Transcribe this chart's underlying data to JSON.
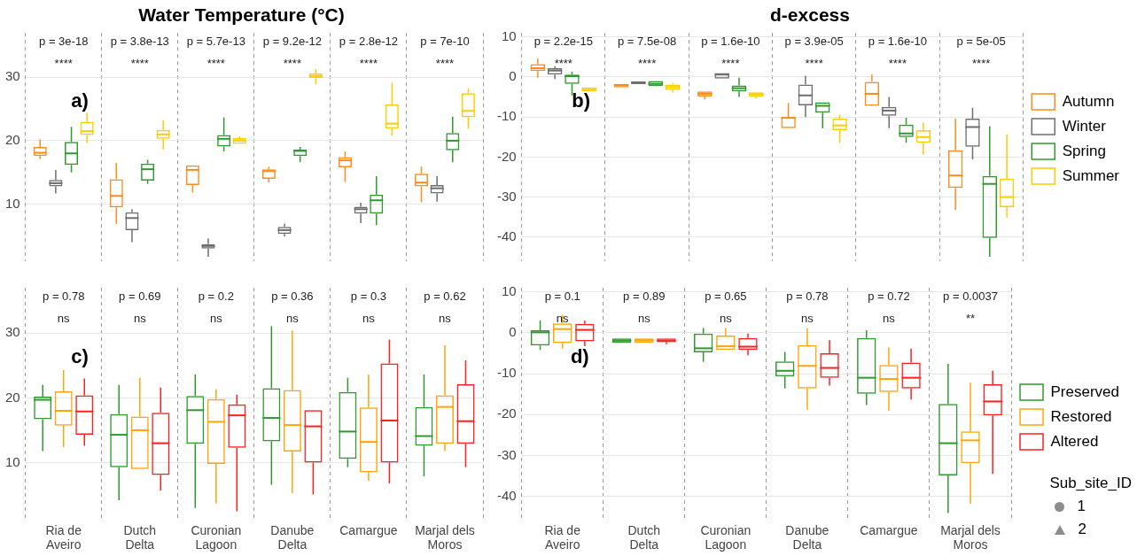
{
  "chart_data": [
    {
      "type": "box",
      "title": "Water Temperature (°C)",
      "categories": [
        null,
        null,
        null,
        null,
        null,
        null
      ],
      "ylim": [
        1,
        37
      ],
      "yticks": [
        10,
        20,
        30
      ],
      "grid": true,
      "tick_labels": "y",
      "legend": false,
      "series": [
        {
          "color": "#ff8c1a",
          "boxes": [
            {
              "low": 17.1,
              "q1": 17.6,
              "median": 18.1,
              "q3": 19.0,
              "high": 20.2
            },
            {
              "low": 6.9,
              "q1": 9.5,
              "median": 11.3,
              "q3": 13.9,
              "high": 16.5
            },
            {
              "low": 11.8,
              "q1": 13.0,
              "median": 15.4,
              "q3": 16.1,
              "high": 16.1
            },
            {
              "low": 13.4,
              "q1": 14.0,
              "median": 15.2,
              "q3": 15.5,
              "high": 15.9
            },
            {
              "low": 13.5,
              "q1": 15.8,
              "median": 16.9,
              "q3": 17.4,
              "high": 18.3
            },
            {
              "low": 10.3,
              "q1": 12.8,
              "median": 13.4,
              "q3": 14.8,
              "high": 15.9
            }
          ]
        },
        {
          "color": "#6e6e6e",
          "boxes": [
            {
              "low": 11.7,
              "q1": 12.8,
              "median": 13.3,
              "q3": 13.8,
              "high": 15.4
            },
            {
              "low": 4.0,
              "q1": 5.9,
              "median": 7.8,
              "q3": 8.7,
              "high": 9.2
            },
            {
              "low": 1.7,
              "q1": 3.0,
              "median": 3.4,
              "q3": 3.7,
              "high": 4.6
            },
            {
              "low": 4.9,
              "q1": 5.3,
              "median": 5.9,
              "q3": 6.4,
              "high": 6.9
            },
            {
              "low": 7.0,
              "q1": 8.5,
              "median": 9.2,
              "q3": 9.6,
              "high": 10.2
            },
            {
              "low": 10.4,
              "q1": 11.7,
              "median": 12.5,
              "q3": 13.0,
              "high": 14.4
            }
          ]
        },
        {
          "color": "#2e9a2e",
          "boxes": [
            {
              "low": 15.0,
              "q1": 16.2,
              "median": 18.0,
              "q3": 19.8,
              "high": 22.2
            },
            {
              "low": 13.2,
              "q1": 13.7,
              "median": 15.5,
              "q3": 16.4,
              "high": 17.0
            },
            {
              "low": 18.3,
              "q1": 19.1,
              "median": 20.3,
              "q3": 20.9,
              "high": 23.7
            },
            {
              "low": 16.6,
              "q1": 17.6,
              "median": 18.4,
              "q3": 18.6,
              "high": 19.0
            },
            {
              "low": 6.7,
              "q1": 8.5,
              "median": 10.6,
              "q3": 11.5,
              "high": 14.4
            },
            {
              "low": 16.6,
              "q1": 18.5,
              "median": 20.0,
              "q3": 21.2,
              "high": 23.8
            }
          ]
        },
        {
          "color": "#ffcc00",
          "boxes": [
            {
              "low": 19.6,
              "q1": 20.9,
              "median": 21.5,
              "q3": 23.0,
              "high": 24.4
            },
            {
              "low": 18.6,
              "q1": 20.3,
              "median": 21.0,
              "q3": 21.7,
              "high": 23.2
            },
            {
              "low": 19.5,
              "q1": 19.5,
              "median": 20.0,
              "q3": 20.4,
              "high": 20.7
            },
            {
              "low": 28.9,
              "q1": 29.9,
              "median": 30.2,
              "q3": 30.6,
              "high": 31.3
            },
            {
              "low": 20.8,
              "q1": 21.9,
              "median": 22.7,
              "q3": 25.7,
              "high": 29.1
            },
            {
              "low": 21.9,
              "q1": 23.7,
              "median": 24.7,
              "q3": 27.5,
              "high": 28.3
            }
          ]
        }
      ],
      "annotations": [
        "a)",
        "p = 3e-18",
        "****",
        "p = 3.8e-13",
        "****",
        "p = 5.7e-13",
        "****",
        "p = 9.2e-12",
        "****",
        "p = 2.8e-12",
        "****",
        "p = 7e-10",
        "****"
      ]
    },
    {
      "type": "box",
      "title": "d-excess",
      "categories": [
        null,
        null,
        null,
        null,
        null,
        null
      ],
      "ylim": [
        -46,
        11
      ],
      "yticks": [
        10,
        0,
        -10,
        -20,
        -30,
        -40
      ],
      "grid": true,
      "tick_labels": "y",
      "legend": "right",
      "series": [
        {
          "name": "Autumn",
          "color": "#ff8c1a",
          "boxes": [
            {
              "low": -0.2,
              "q1": 1.5,
              "median": 2.2,
              "q3": 3.2,
              "high": 4.6
            },
            {
              "low": -2.6,
              "q1": -2.6,
              "median": -2.0,
              "q3": -1.7,
              "high": -1.7
            },
            {
              "low": -5.6,
              "q1": -4.9,
              "median": -4.2,
              "q3": -3.6,
              "high": -3.6
            },
            {
              "low": -12.8,
              "q1": -12.8,
              "median": -10.2,
              "q3": -10.0,
              "high": -6.5
            },
            {
              "low": -7.2,
              "q1": -7.2,
              "median": -4.2,
              "q3": -1.2,
              "high": 0.6
            },
            {
              "low": -33.2,
              "q1": -27.7,
              "median": -24.6,
              "q3": -18.3,
              "high": -10.4
            }
          ]
        },
        {
          "name": "Winter",
          "color": "#6e6e6e",
          "boxes": [
            {
              "low": -0.5,
              "q1": 0.6,
              "median": 1.6,
              "q3": 2.2,
              "high": 2.7
            },
            {
              "low": -1.8,
              "q1": -1.8,
              "median": -1.4,
              "q3": -1.1,
              "high": -1.1
            },
            {
              "low": -0.4,
              "q1": -0.4,
              "median": 0.6,
              "q3": 1.0,
              "high": 1.0
            },
            {
              "low": -10.0,
              "q1": -7.1,
              "median": -4.6,
              "q3": -1.9,
              "high": 0.3
            },
            {
              "low": -12.8,
              "q1": -9.7,
              "median": -8.4,
              "q3": -7.5,
              "high": -5.0
            },
            {
              "low": -20.6,
              "q1": -17.4,
              "median": -12.5,
              "q3": -10.4,
              "high": -7.7
            }
          ]
        },
        {
          "name": "Spring",
          "color": "#2e9a2e",
          "boxes": [
            {
              "low": -4.6,
              "q1": -1.7,
              "median": 0.2,
              "q3": 0.6,
              "high": 1.3
            },
            {
              "low": -2.2,
              "q1": -2.2,
              "median": -1.7,
              "q3": -1.0,
              "high": -1.0
            },
            {
              "low": -5.0,
              "q1": -3.6,
              "median": -2.8,
              "q3": -2.1,
              "high": -0.2
            },
            {
              "low": -12.8,
              "q1": -8.9,
              "median": -7.2,
              "q3": -6.3,
              "high": -6.3
            },
            {
              "low": -16.4,
              "q1": -15.0,
              "median": -14.1,
              "q3": -11.9,
              "high": -10.2
            },
            {
              "low": -44.9,
              "q1": -40.2,
              "median": -26.7,
              "q3": -24.7,
              "high": -12.3
            }
          ]
        },
        {
          "name": "Summer",
          "color": "#ffcc00",
          "boxes": [
            {
              "low": -3.6,
              "q1": -3.6,
              "median": -3.2,
              "q3": -2.6,
              "high": -2.6
            },
            {
              "low": -3.9,
              "q1": -3.2,
              "median": -2.5,
              "q3": -1.9,
              "high": -1.5
            },
            {
              "low": -5.3,
              "q1": -4.9,
              "median": -4.3,
              "q3": -3.8,
              "high": -3.8
            },
            {
              "low": -16.5,
              "q1": -13.3,
              "median": -12.1,
              "q3": -10.4,
              "high": -9.4
            },
            {
              "low": -19.4,
              "q1": -16.4,
              "median": -15.0,
              "q3": -13.3,
              "high": -11.4
            },
            {
              "low": -35.1,
              "q1": -32.5,
              "median": -30.0,
              "q3": -25.4,
              "high": -14.3
            }
          ]
        }
      ],
      "annotations": [
        "b)",
        "p = 2.2e-15",
        "****",
        "p = 7.5e-08",
        "****",
        "p = 1.6e-10",
        "****",
        "p = 3.9e-05",
        "****",
        "p = 1.6e-10",
        "****",
        "p = 5e-05",
        "****"
      ]
    },
    {
      "type": "box",
      "categories": [
        "Ria de Aveiro",
        "Dutch Delta",
        "Curonian Lagoon",
        "Danube Delta",
        "Camargue",
        "Marjal dels Moros"
      ],
      "ylim": [
        1,
        37
      ],
      "yticks": [
        10,
        20,
        30
      ],
      "grid": true,
      "legend": false,
      "series": [
        {
          "color": "#2e9a2e",
          "boxes": [
            {
              "low": 11.8,
              "q1": 16.7,
              "median": 19.7,
              "q3": 20.2,
              "high": 22.0
            },
            {
              "low": 4.2,
              "q1": 9.3,
              "median": 14.3,
              "q3": 17.5,
              "high": 22.0
            },
            {
              "low": 3.0,
              "q1": 12.9,
              "median": 18.1,
              "q3": 20.3,
              "high": 23.6
            },
            {
              "low": 6.6,
              "q1": 13.3,
              "median": 16.9,
              "q3": 21.5,
              "high": 31.1
            },
            {
              "low": 9.3,
              "q1": 10.6,
              "median": 14.8,
              "q3": 20.9,
              "high": 23.1
            },
            {
              "low": 7.9,
              "q1": 12.6,
              "median": 14.1,
              "q3": 18.6,
              "high": 23.6
            }
          ]
        },
        {
          "color": "#ffa50a",
          "boxes": [
            {
              "low": 12.4,
              "q1": 15.7,
              "median": 18.0,
              "q3": 21.0,
              "high": 24.3
            },
            {
              "low": 9.0,
              "q1": 9.0,
              "median": 15.0,
              "q3": 17.1,
              "high": 23.1
            },
            {
              "low": 3.7,
              "q1": 9.8,
              "median": 16.3,
              "q3": 19.8,
              "high": 21.3
            },
            {
              "low": 5.3,
              "q1": 11.7,
              "median": 15.8,
              "q3": 21.2,
              "high": 30.4
            },
            {
              "low": 7.2,
              "q1": 8.5,
              "median": 13.2,
              "q3": 18.5,
              "high": 23.6
            },
            {
              "low": 11.8,
              "q1": 12.9,
              "median": 18.6,
              "q3": 20.4,
              "high": 28.1
            }
          ]
        },
        {
          "color": "#ff1f1f",
          "boxes": [
            {
              "low": 12.6,
              "q1": 14.3,
              "median": 17.9,
              "q3": 20.4,
              "high": 23.0
            },
            {
              "low": 5.7,
              "q1": 8.1,
              "median": 13.0,
              "q3": 17.7,
              "high": 21.6
            },
            {
              "low": 2.5,
              "q1": 12.3,
              "median": 17.3,
              "q3": 19.0,
              "high": 20.5
            },
            {
              "low": 5.1,
              "q1": 10.0,
              "median": 15.6,
              "q3": 18.1,
              "high": 18.1
            },
            {
              "low": 6.8,
              "q1": 10.0,
              "median": 16.5,
              "q3": 25.3,
              "high": 29.0
            },
            {
              "low": 9.3,
              "q1": 12.9,
              "median": 16.4,
              "q3": 22.1,
              "high": 25.8
            }
          ]
        }
      ],
      "annotations": [
        "c)",
        "p = 0.78",
        "ns",
        "p = 0.69",
        "ns",
        "p = 0.2",
        "ns",
        "p = 0.36",
        "ns",
        "p = 0.3",
        "ns",
        "p = 0.62",
        "ns"
      ]
    },
    {
      "type": "box",
      "categories": [
        "Ria de Aveiro",
        "Dutch Delta",
        "Curonian Lagoon",
        "Danube Delta",
        "Camargue",
        "Marjal dels Moros"
      ],
      "ylim": [
        -46,
        11
      ],
      "yticks": [
        10,
        0,
        -10,
        -20,
        -30,
        -40
      ],
      "grid": true,
      "legend": "right",
      "series": [
        {
          "name": "Preserved",
          "color": "#2e9a2e",
          "boxes": [
            {
              "low": -4.2,
              "q1": -3.1,
              "median": 0.1,
              "q3": 0.6,
              "high": 3.0
            },
            {
              "low": -2.4,
              "q1": -2.4,
              "median": -1.9,
              "q3": -1.4,
              "high": -1.4
            },
            {
              "low": -7.1,
              "q1": -4.8,
              "median": -3.8,
              "q3": -0.2,
              "high": 1.2
            },
            {
              "low": -13.6,
              "q1": -10.7,
              "median": -9.3,
              "q3": -7.0,
              "high": -4.7
            },
            {
              "low": -17.7,
              "q1": -14.9,
              "median": -11.0,
              "q3": -1.3,
              "high": 0.6
            },
            {
              "low": -44.1,
              "q1": -34.9,
              "median": -27.0,
              "q3": -17.4,
              "high": -7.6
            }
          ]
        },
        {
          "name": "Restored",
          "color": "#ffa50a",
          "boxes": [
            {
              "low": -3.8,
              "q1": -2.5,
              "median": 0.9,
              "q3": 2.3,
              "high": 4.4
            },
            {
              "low": -2.4,
              "q1": -2.4,
              "median": -1.8,
              "q3": -1.4,
              "high": -1.4
            },
            {
              "low": -4.2,
              "q1": -4.2,
              "median": -3.3,
              "q3": -0.7,
              "high": 1.2
            },
            {
              "low": -18.8,
              "q1": -13.6,
              "median": -8.1,
              "q3": -3.0,
              "high": 1.1
            },
            {
              "low": -19.1,
              "q1": -14.5,
              "median": -11.3,
              "q3": -7.9,
              "high": -3.6
            },
            {
              "low": -41.8,
              "q1": -31.9,
              "median": -26.3,
              "q3": -24.1,
              "high": -12.2
            }
          ]
        },
        {
          "name": "Altered",
          "color": "#ff1f1f",
          "boxes": [
            {
              "low": -3.3,
              "q1": -2.1,
              "median": 0.7,
              "q3": 2.2,
              "high": 3.0
            },
            {
              "low": -2.8,
              "q1": -2.3,
              "median": -2.0,
              "q3": -1.4,
              "high": -1.4
            },
            {
              "low": -5.5,
              "q1": -4.2,
              "median": -3.4,
              "q3": -1.3,
              "high": -0.2
            },
            {
              "low": -12.9,
              "q1": -11.0,
              "median": -8.6,
              "q3": -5.0,
              "high": -1.8
            },
            {
              "low": -16.3,
              "q1": -13.6,
              "median": -11.0,
              "q3": -7.3,
              "high": -3.9
            },
            {
              "low": -34.5,
              "q1": -20.2,
              "median": -16.8,
              "q3": -12.6,
              "high": -9.3
            }
          ]
        }
      ],
      "annotations": [
        "d)",
        "p = 0.1",
        "ns",
        "p = 0.89",
        "ns",
        "p = 0.65",
        "ns",
        "p = 0.78",
        "ns",
        "p = 0.72",
        "ns",
        "p = 0.0037",
        "**",
        "Sub_site_ID",
        "1",
        "2"
      ]
    }
  ]
}
